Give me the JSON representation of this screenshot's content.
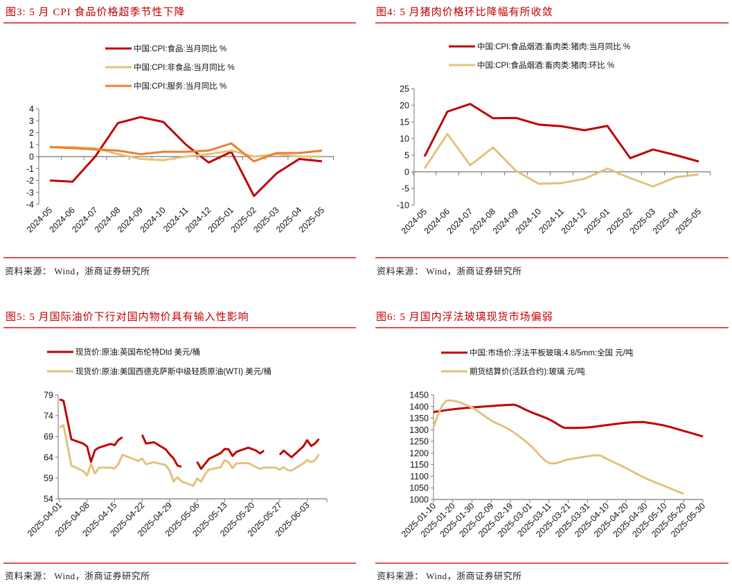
{
  "source_text": "资料来源： Wind，浙商证券研究所",
  "panels": [
    {
      "title": "图3:   5 月 CPI 食品价格超季节性下降"
    },
    {
      "title": "图4:   5 月猪肉价格环比降幅有所收敛"
    },
    {
      "title": "图5:   5 月国际油价下行对国内物价具有输入性影响"
    },
    {
      "title": "图6:   5 月国内浮法玻璃现货市场偏弱"
    }
  ],
  "chart_data": [
    {
      "type": "line",
      "title": "5 月 CPI 食品价格超季节性下降",
      "categories": [
        "2024-05",
        "2024-06",
        "2024-07",
        "2024-08",
        "2024-09",
        "2024-10",
        "2024-11",
        "2024-12",
        "2025-01",
        "2025-02",
        "2025-03",
        "2025-04",
        "2025-05"
      ],
      "series": [
        {
          "name": "中国:CPI:食品:当月同比 %",
          "color": "#c00000",
          "values": [
            -2.0,
            -2.1,
            0.0,
            2.8,
            3.3,
            2.9,
            1.0,
            -0.5,
            0.4,
            -3.3,
            -1.4,
            -0.2,
            -0.4
          ]
        },
        {
          "name": "中国:CPI:非食品:当月同比 %",
          "color": "#e2c27a",
          "values": [
            0.8,
            0.8,
            0.7,
            0.2,
            -0.2,
            -0.3,
            0.0,
            0.2,
            0.5,
            0.0,
            0.2,
            0.0,
            0.0
          ]
        },
        {
          "name": "中国:CPI:服务:当月同比 %",
          "color": "#ed7d31",
          "values": [
            0.8,
            0.7,
            0.6,
            0.5,
            0.2,
            0.4,
            0.4,
            0.5,
            1.1,
            -0.4,
            0.3,
            0.3,
            0.5
          ]
        }
      ],
      "yticks": [
        4,
        3,
        2,
        1,
        0,
        -1,
        -2,
        -3,
        -4
      ],
      "ylim": [
        -4,
        4
      ],
      "xlabel": "",
      "ylabel": "",
      "legend_position": "top"
    },
    {
      "type": "line",
      "title": "5 月猪肉价格环比降幅有所收敛",
      "categories": [
        "2024-05",
        "2024-06",
        "2024-07",
        "2024-08",
        "2024-09",
        "2024-10",
        "2024-11",
        "2024-12",
        "2025-01",
        "2025-02",
        "2025-03",
        "2025-04",
        "2025-05"
      ],
      "series": [
        {
          "name": "中国:CPI:食品烟酒:畜肉类:猪肉:当月同比 %",
          "color": "#c00000",
          "values": [
            4.6,
            18.1,
            20.4,
            16.1,
            16.2,
            14.2,
            13.7,
            12.5,
            13.8,
            4.1,
            6.7,
            5.0,
            3.1
          ]
        },
        {
          "name": "中国:CPI:食品烟酒:畜肉类:猪肉:环比 %",
          "color": "#e2c27a",
          "values": [
            1.0,
            11.4,
            2.0,
            7.3,
            0.3,
            -3.6,
            -3.4,
            -2.1,
            1.0,
            -1.9,
            -4.4,
            -1.6,
            -0.8
          ]
        }
      ],
      "yticks": [
        25,
        20,
        15,
        10,
        5,
        0,
        -5,
        -10
      ],
      "ylim": [
        -10,
        25
      ],
      "xlabel": "",
      "ylabel": "",
      "legend_position": "top"
    },
    {
      "type": "line",
      "title": "5 月国际油价下行对国内物价具有输入性影响",
      "xticks": [
        "2025-04-01",
        "2025-04-08",
        "2025-04-15",
        "2025-04-22",
        "2025-04-29",
        "2025-05-06",
        "2025-05-13",
        "2025-05-20",
        "2025-05-27",
        "2025-06-03"
      ],
      "x_day_offsets_note": "day index from 2025-04-01",
      "series": [
        {
          "name": "现货价:原油:英国布伦特Dtd 美元/桶",
          "color": "#c00000",
          "points": [
            [
              0,
              77.9
            ],
            [
              1,
              77.6
            ],
            [
              3,
              68.3
            ],
            [
              6,
              67.3
            ],
            [
              7,
              66.6
            ],
            [
              8,
              62.9
            ],
            [
              9,
              65.7
            ],
            [
              10,
              66.3
            ],
            [
              12,
              66.9
            ],
            [
              13,
              67.2
            ],
            [
              14,
              66.9
            ],
            [
              15,
              68.2
            ],
            [
              16,
              68.8
            ],
            null,
            [
              21,
              69.4
            ],
            [
              22,
              67.3
            ],
            [
              24,
              67.6
            ],
            [
              27,
              65.9
            ],
            [
              28,
              64.7
            ],
            [
              29,
              63.7
            ],
            [
              30,
              62.0
            ],
            [
              31,
              61.7
            ],
            null,
            [
              35,
              62.9
            ],
            [
              36,
              61.2
            ],
            [
              38,
              63.6
            ],
            [
              41,
              65.0
            ],
            [
              42,
              66.0
            ],
            [
              43,
              65.9
            ],
            [
              44,
              64.3
            ],
            [
              45,
              65.3
            ],
            [
              48,
              66.3
            ],
            [
              50,
              65.6
            ],
            [
              51,
              64.9
            ],
            [
              52,
              65.6
            ],
            null,
            [
              56,
              64.6
            ],
            [
              57,
              65.6
            ],
            [
              59,
              64.0
            ],
            [
              62,
              66.6
            ],
            [
              63,
              68.1
            ],
            [
              64,
              66.7
            ],
            [
              65,
              67.3
            ],
            [
              66,
              68.4
            ]
          ]
        },
        {
          "name": "现货价:原油:美国西德克萨斯中级轻质原油(WTI) 美元/桶",
          "color": "#e2c27a",
          "points": [
            [
              0,
              71.2
            ],
            [
              1,
              71.7
            ],
            [
              3,
              62.0
            ],
            [
              6,
              60.7
            ],
            [
              7,
              59.6
            ],
            [
              8,
              62.4
            ],
            [
              9,
              60.1
            ],
            [
              10,
              61.5
            ],
            [
              13,
              61.5
            ],
            [
              14,
              61.3
            ],
            [
              15,
              62.4
            ],
            [
              16,
              64.6
            ],
            [
              20,
              63.1
            ],
            [
              21,
              63.7
            ],
            [
              22,
              62.3
            ],
            [
              24,
              62.8
            ],
            [
              27,
              62.1
            ],
            [
              28,
              60.8
            ],
            [
              29,
              58.2
            ],
            [
              30,
              59.2
            ],
            [
              31,
              58.2
            ],
            [
              34,
              57.1
            ],
            [
              35,
              58.9
            ],
            [
              36,
              58.1
            ],
            [
              37,
              59.9
            ],
            [
              38,
              61.0
            ],
            [
              41,
              61.6
            ],
            [
              42,
              63.3
            ],
            [
              43,
              62.8
            ],
            [
              44,
              61.4
            ],
            [
              45,
              62.5
            ],
            [
              48,
              62.6
            ],
            [
              50,
              61.6
            ],
            [
              51,
              61.2
            ],
            [
              52,
              61.5
            ],
            [
              55,
              61.5
            ],
            [
              56,
              61.0
            ],
            [
              57,
              61.6
            ],
            [
              58,
              60.9
            ],
            [
              59,
              60.8
            ],
            [
              62,
              62.5
            ],
            [
              63,
              63.3
            ],
            [
              64,
              62.8
            ],
            [
              65,
              63.3
            ],
            [
              66,
              64.7
            ]
          ]
        }
      ],
      "yticks": [
        79,
        74,
        69,
        64,
        59,
        54
      ],
      "ylim": [
        54,
        79
      ],
      "xlabel": "",
      "ylabel": "",
      "legend_position": "top"
    },
    {
      "type": "line",
      "title": "5 月国内浮法玻璃现货市场偏弱",
      "xticks": [
        "2025-01-10",
        "2025-01-20",
        "2025-01-30",
        "2025-02-09",
        "2025-02-19",
        "2025-03-01",
        "2025-03-11",
        "2025-03-21",
        "2025-03-31",
        "2025-04-10",
        "2025-04-20",
        "2025-04-30",
        "2025-05-10",
        "2025-05-20",
        "2025-05-30"
      ],
      "series": [
        {
          "name": "中国:市场价:浮法平板玻璃:4.8/5mm:全国 元/吨",
          "color": "#c00000",
          "points": [
            [
              0,
              1376
            ],
            [
              1,
              1388
            ],
            [
              2,
              1396
            ],
            [
              3,
              1402
            ],
            [
              4,
              1407
            ],
            [
              4.3,
              1405
            ],
            [
              5,
              1378
            ],
            [
              6,
              1345
            ],
            [
              6.7,
              1312
            ],
            [
              7,
              1308
            ],
            [
              8,
              1310
            ],
            [
              9,
              1320
            ],
            [
              10,
              1330
            ],
            [
              10.8,
              1333
            ],
            [
              11,
              1332
            ],
            [
              12,
              1318
            ],
            [
              13,
              1295
            ],
            [
              14,
              1271
            ]
          ]
        },
        {
          "name": "期货结算价(活跃合约):玻璃 元/吨",
          "color": "#e2c27a",
          "points": [
            [
              0,
              1312
            ],
            [
              0.5,
              1410
            ],
            [
              1,
              1425
            ],
            [
              2,
              1395
            ],
            [
              3,
              1340
            ],
            [
              4,
              1298
            ],
            [
              5,
              1235
            ],
            [
              6,
              1158
            ],
            [
              7,
              1172
            ],
            [
              8,
              1186
            ],
            [
              8.6,
              1190
            ],
            [
              9,
              1175
            ],
            [
              10,
              1135
            ],
            [
              11,
              1092
            ],
            [
              12,
              1058
            ],
            [
              13,
              1024
            ]
          ]
        }
      ],
      "yticks": [
        1450,
        1400,
        1350,
        1300,
        1250,
        1200,
        1150,
        1100,
        1050,
        1000
      ],
      "ylim": [
        1000,
        1450
      ],
      "xlabel": "",
      "ylabel": "",
      "legend_position": "top"
    }
  ]
}
